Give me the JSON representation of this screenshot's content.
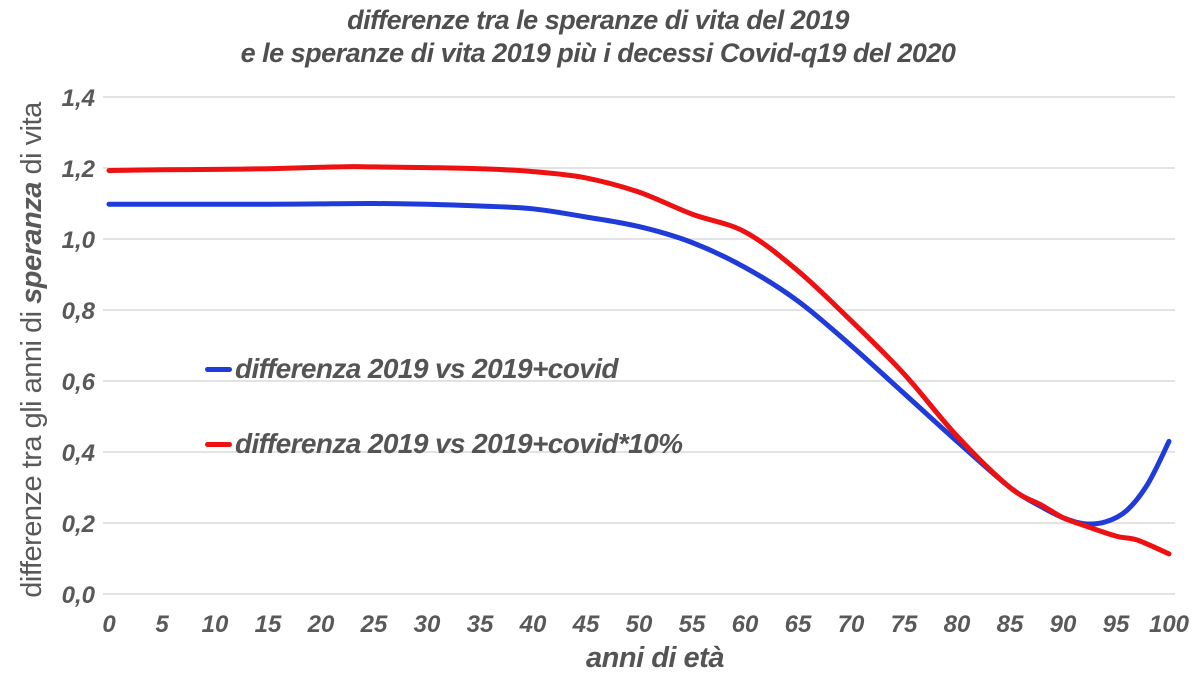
{
  "title": {
    "line1": "differenze tra le speranze di vita del 2019",
    "line2": "e le speranze di vita 2019 più i decessi Covid-q19 del 2020"
  },
  "y_axis": {
    "label_prefix": "differenze tra gli anni di ",
    "label_emphasis": "speranza",
    "label_suffix": " di vita"
  },
  "x_axis": {
    "label": "anni di età"
  },
  "legend": {
    "items": [
      {
        "label": "differenza 2019 vs 2019+covid",
        "color": "#1f3bd9"
      },
      {
        "label": "differenza 2019 vs 2019+covid*10%",
        "color": "#ee1111"
      }
    ]
  },
  "colors": {
    "blue_line": "#1f3bd9",
    "red_line": "#ee1111",
    "grid": "#dadada",
    "tick_text": "#595959",
    "title_text": "#4f4f4f"
  },
  "chart_data": {
    "type": "line",
    "title": "differenze tra le speranze di vita del 2019 e le speranze di vita 2019 più i decessi Covid-q19 del 2020",
    "xlabel": "anni di età",
    "ylabel": "differenze tra gli anni di speranza di vita",
    "xlim": [
      0,
      100
    ],
    "ylim": [
      0.0,
      1.4
    ],
    "grid": "horizontal",
    "legend_position": "inside left",
    "x_ticks": [
      0,
      5,
      10,
      15,
      20,
      25,
      30,
      35,
      40,
      45,
      50,
      55,
      60,
      65,
      70,
      75,
      80,
      85,
      90,
      95,
      100
    ],
    "y_ticks": [
      0.0,
      0.2,
      0.4,
      0.6,
      0.8,
      1.0,
      1.2,
      1.4
    ],
    "y_tick_labels": [
      "0,0",
      "0,2",
      "0,4",
      "0,6",
      "0,8",
      "1,0",
      "1,2",
      "1,4"
    ],
    "series": [
      {
        "name": "differenza 2019 vs 2019+covid",
        "color": "#1f3bd9",
        "x": [
          0,
          5,
          10,
          15,
          20,
          25,
          30,
          35,
          40,
          45,
          50,
          55,
          60,
          65,
          70,
          75,
          80,
          85,
          88,
          90,
          92,
          94,
          96,
          98,
          100
        ],
        "y": [
          1.098,
          1.098,
          1.098,
          1.098,
          1.099,
          1.1,
          1.098,
          1.093,
          1.085,
          1.062,
          1.035,
          0.99,
          0.92,
          0.825,
          0.7,
          0.565,
          0.43,
          0.3,
          0.245,
          0.215,
          0.198,
          0.203,
          0.235,
          0.31,
          0.43
        ]
      },
      {
        "name": "differenza 2019 vs 2019+covid*10%",
        "color": "#ee1111",
        "x": [
          0,
          5,
          10,
          15,
          20,
          23,
          25,
          30,
          35,
          40,
          45,
          50,
          55,
          60,
          65,
          70,
          75,
          80,
          85,
          88,
          90,
          92,
          95,
          97,
          100
        ],
        "y": [
          1.193,
          1.195,
          1.196,
          1.198,
          1.202,
          1.204,
          1.203,
          1.201,
          1.198,
          1.19,
          1.172,
          1.132,
          1.07,
          1.02,
          0.91,
          0.77,
          0.62,
          0.445,
          0.3,
          0.25,
          0.215,
          0.193,
          0.163,
          0.152,
          0.113
        ]
      }
    ]
  }
}
